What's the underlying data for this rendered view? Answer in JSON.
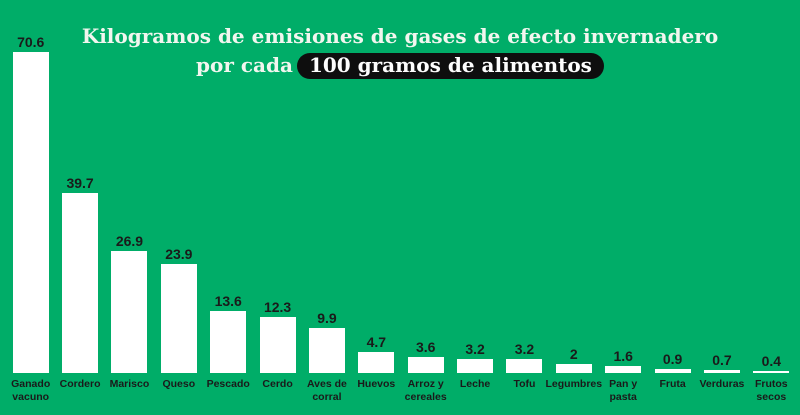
{
  "title": {
    "line1": "Kilogramos de emisiones de gases de efecto invernadero",
    "line2_prefix": "por cada",
    "line2_highlight": "100 gramos de alimentos"
  },
  "colors": {
    "background": "#00AD68",
    "bar": "#ffffff",
    "title_text": "#f2f6ef",
    "pill_background": "#0e0e0e",
    "pill_text": "#fdfdfd",
    "label_text": "#1a1a1a"
  },
  "chart_data": {
    "type": "bar",
    "title": "Kilogramos de emisiones de gases de efecto invernadero por cada 100 gramos de alimentos",
    "xlabel": "",
    "ylabel": "",
    "ylim": [
      0,
      70.6
    ],
    "grid": false,
    "legend": false,
    "orientation": "vertical",
    "categories": [
      "Ganado vacuno",
      "Cordero",
      "Marisco",
      "Queso",
      "Pescado",
      "Cerdo",
      "Aves de corral",
      "Huevos",
      "Arroz y cereales",
      "Leche",
      "Tofu",
      "Legumbres",
      "Pan y pasta",
      "Fruta",
      "Verduras",
      "Frutos secos"
    ],
    "values": [
      70.6,
      39.7,
      26.9,
      23.9,
      13.6,
      12.3,
      9.9,
      4.7,
      3.6,
      3.2,
      3.2,
      2,
      1.6,
      0.9,
      0.7,
      0.4
    ],
    "value_labels": [
      "70.6",
      "39.7",
      "26.9",
      "23.9",
      "13.6",
      "12.3",
      "9.9",
      "4.7",
      "3.6",
      "3.2",
      "3.2",
      "2",
      "1.6",
      "0.9",
      "0.7",
      "0.4"
    ]
  }
}
